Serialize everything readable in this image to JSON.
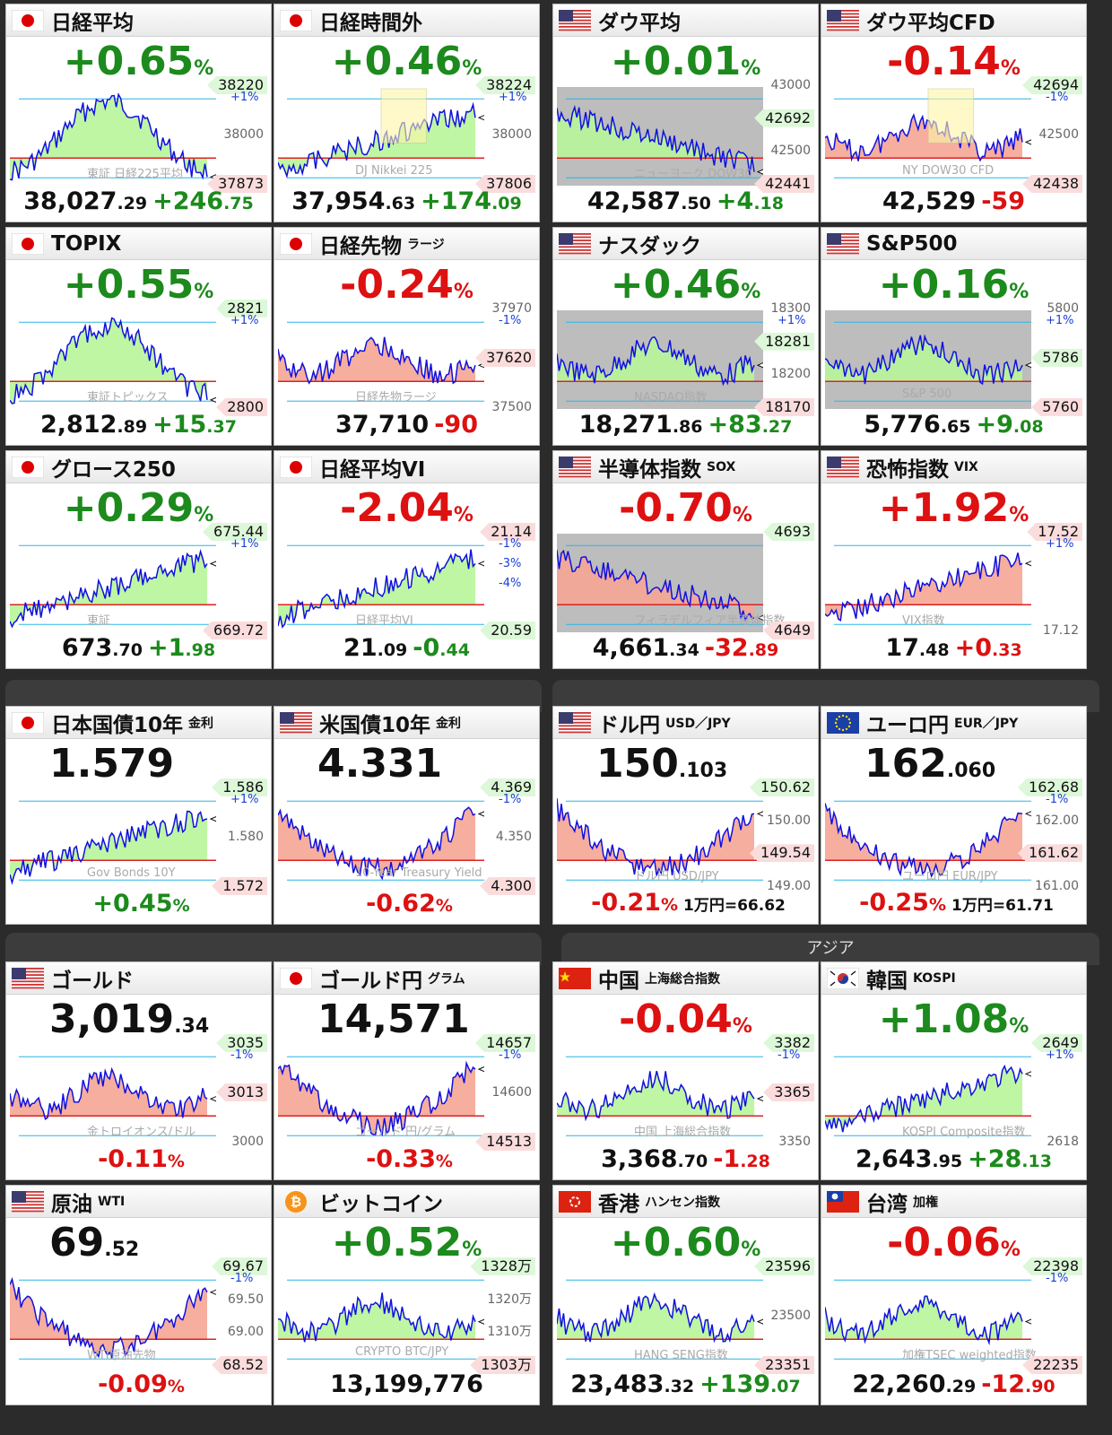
{
  "section": {
    "asia_label": "アジア"
  },
  "tiles": [
    {
      "id": "nikkei",
      "flag": "jp",
      "name": "日経平均",
      "sub": "",
      "big": "+0.65",
      "big_unit": "%",
      "dir": "up",
      "tags": [
        {
          "t": "38220",
          "c": "g"
        },
        {
          "t": "38000",
          "c": "plain"
        },
        {
          "t": "37873",
          "c": "r"
        }
      ],
      "pct": [
        "+1%"
      ],
      "wm": "東証 日経225平均",
      "foot": "38,027",
      "foot_dec": ".29",
      "chg": "+246",
      "chg_dec": ".75",
      "chg_dir": "up",
      "fill": "g",
      "box": false,
      "shade": false
    },
    {
      "id": "nikkei-night",
      "flag": "jp",
      "name": "日経時間外",
      "sub": "",
      "big": "+0.46",
      "big_unit": "%",
      "dir": "up",
      "tags": [
        {
          "t": "38224",
          "c": "g"
        },
        {
          "t": "38000",
          "c": "plain"
        },
        {
          "t": "37806",
          "c": "r"
        }
      ],
      "pct": [
        "+1%"
      ],
      "wm": "DJ Nikkei 225",
      "foot": "37,954",
      "foot_dec": ".63",
      "chg": "+174",
      "chg_dec": ".09",
      "chg_dir": "up",
      "fill": "g",
      "box": true,
      "shade": false
    },
    {
      "id": "dow",
      "flag": "us",
      "name": "ダウ平均",
      "sub": "",
      "big": "+0.01",
      "big_unit": "%",
      "dir": "up",
      "tags": [
        {
          "t": "43000",
          "c": "plain"
        },
        {
          "t": "42692",
          "c": "g"
        },
        {
          "t": "42500",
          "c": "plain"
        },
        {
          "t": "42441",
          "c": "r"
        }
      ],
      "pct": [],
      "wm": "ニューヨーク DOW30",
      "foot": "42,587",
      "foot_dec": ".50",
      "chg": "+4",
      "chg_dec": ".18",
      "chg_dir": "up",
      "fill": "g",
      "box": false,
      "shade": true
    },
    {
      "id": "dow-cfd",
      "flag": "us",
      "name": "ダウ平均CFD",
      "sub": "",
      "big": "-0.14",
      "big_unit": "%",
      "dir": "dn",
      "tags": [
        {
          "t": "42694",
          "c": "g"
        },
        {
          "t": "42500",
          "c": "plain"
        },
        {
          "t": "42438",
          "c": "r"
        }
      ],
      "pct": [
        "-1%"
      ],
      "wm": "NY DOW30 CFD",
      "foot": "42,529",
      "foot_dec": "",
      "chg": "-59",
      "chg_dec": "",
      "chg_dir": "dn",
      "fill": "r",
      "box": true,
      "shade": false
    },
    {
      "id": "topix",
      "flag": "jp",
      "name": "TOPIX",
      "sub": "",
      "big": "+0.55",
      "big_unit": "%",
      "dir": "up",
      "tags": [
        {
          "t": "2821",
          "c": "g"
        },
        {
          "t": "2800",
          "c": "r"
        }
      ],
      "pct": [
        "+1%"
      ],
      "wm": "東証トピックス",
      "foot": "2,812",
      "foot_dec": ".89",
      "chg": "+15",
      "chg_dec": ".37",
      "chg_dir": "up",
      "fill": "g",
      "box": false,
      "shade": false
    },
    {
      "id": "nikkei-futures",
      "flag": "jp",
      "name": "日経先物",
      "sub": "ラージ",
      "big": "-0.24",
      "big_unit": "%",
      "dir": "dn",
      "tags": [
        {
          "t": "37970",
          "c": "plain"
        },
        {
          "t": "37620",
          "c": "r"
        },
        {
          "t": "37500",
          "c": "plain"
        }
      ],
      "pct": [
        "-1%"
      ],
      "wm": "日経先物ラージ",
      "foot": "37,710",
      "foot_dec": "",
      "chg": "-90",
      "chg_dec": "",
      "chg_dir": "dn",
      "fill": "r",
      "box": false,
      "shade": false
    },
    {
      "id": "nasdaq",
      "flag": "us",
      "name": "ナスダック",
      "sub": "",
      "big": "+0.46",
      "big_unit": "%",
      "dir": "up",
      "tags": [
        {
          "t": "18300",
          "c": "plain"
        },
        {
          "t": "18281",
          "c": "g"
        },
        {
          "t": "18200",
          "c": "plain"
        },
        {
          "t": "18170",
          "c": "r"
        }
      ],
      "pct": [
        "+1%"
      ],
      "wm": "NASDAQ指数",
      "foot": "18,271",
      "foot_dec": ".86",
      "chg": "+83",
      "chg_dec": ".27",
      "chg_dir": "up",
      "fill": "g",
      "box": false,
      "shade": true
    },
    {
      "id": "sp500",
      "flag": "us",
      "name": "S&P500",
      "sub": "",
      "big": "+0.16",
      "big_unit": "%",
      "dir": "up",
      "tags": [
        {
          "t": "5800",
          "c": "plain"
        },
        {
          "t": "5786",
          "c": "g"
        },
        {
          "t": "5760",
          "c": "r"
        }
      ],
      "pct": [
        "+1%"
      ],
      "wm": "S&P 500",
      "foot": "5,776",
      "foot_dec": ".65",
      "chg": "+9",
      "chg_dec": ".08",
      "chg_dir": "up",
      "fill": "g",
      "box": false,
      "shade": true
    },
    {
      "id": "growth250",
      "flag": "jp",
      "name": "グロース250",
      "sub": "",
      "big": "+0.29",
      "big_unit": "%",
      "dir": "up",
      "tags": [
        {
          "t": "675.44",
          "c": "g"
        },
        {
          "t": "669.72",
          "c": "r"
        }
      ],
      "pct": [
        "+1%"
      ],
      "wm": "東証",
      "foot": "673",
      "foot_dec": ".70",
      "chg": "+1",
      "chg_dec": ".98",
      "chg_dir": "up",
      "fill": "mix",
      "box": false,
      "shade": false
    },
    {
      "id": "nikkei-vi",
      "flag": "jp",
      "name": "日経平均VI",
      "sub": "",
      "big": "-2.04",
      "big_unit": "%",
      "dir": "dn",
      "tags": [
        {
          "t": "21.14",
          "c": "r"
        },
        {
          "t": "20.59",
          "c": "g"
        }
      ],
      "pct": [
        "-1%",
        "-3%",
        "-4%"
      ],
      "wm": "日経平均VI",
      "foot": "21",
      "foot_dec": ".09",
      "chg": "-0",
      "chg_dec": ".44",
      "chg_dir": "up",
      "fill": "vi",
      "box": false,
      "shade": false
    },
    {
      "id": "sox",
      "flag": "us",
      "name": "半導体指数",
      "sub": "SOX",
      "big": "-0.70",
      "big_unit": "%",
      "dir": "dn",
      "tags": [
        {
          "t": "4693",
          "c": "g"
        },
        {
          "t": "4649",
          "c": "r"
        }
      ],
      "pct": [],
      "wm": "フィラデルフィア半導体指数",
      "foot": "4,661",
      "foot_dec": ".34",
      "chg": "-32",
      "chg_dec": ".89",
      "chg_dir": "dn",
      "fill": "r",
      "box": false,
      "shade": true
    },
    {
      "id": "vix",
      "flag": "us",
      "name": "恐怖指数",
      "sub": "VIX",
      "big": "+1.92",
      "big_unit": "%",
      "dir": "dn",
      "tags": [
        {
          "t": "17.52",
          "c": "r"
        },
        {
          "t": "17.12",
          "c": "plain"
        }
      ],
      "pct": [
        "+1%"
      ],
      "wm": "VIX指数",
      "foot": "17",
      "foot_dec": ".48",
      "chg": "+0",
      "chg_dec": ".33",
      "chg_dir": "dn",
      "fill": "r",
      "box": false,
      "shade": false
    },
    {
      "id": "jgb10",
      "flag": "jp",
      "name": "日本国債10年",
      "sub": "金利",
      "big": "1.579",
      "big_unit": "",
      "dir": "plain",
      "tags": [
        {
          "t": "1.586",
          "c": "g"
        },
        {
          "t": "1.580",
          "c": "plain"
        },
        {
          "t": "1.572",
          "c": "r"
        }
      ],
      "pct": [
        "+1%"
      ],
      "wm": "Gov Bonds 10Y",
      "foot": "",
      "foot_dec": "",
      "chg": "+0.45",
      "chg_dec": "%",
      "chg_dir": "up",
      "fill": "g",
      "box": false,
      "shade": false
    },
    {
      "id": "ust10",
      "flag": "us",
      "name": "米国債10年",
      "sub": "金利",
      "big": "4.331",
      "big_unit": "",
      "dir": "plain",
      "tags": [
        {
          "t": "4.369",
          "c": "g"
        },
        {
          "t": "4.350",
          "c": "plain"
        },
        {
          "t": "4.300",
          "c": "r"
        }
      ],
      "pct": [
        "-1%"
      ],
      "wm": "10-Year Treasury Yield",
      "foot": "",
      "foot_dec": "",
      "chg": "-0.62",
      "chg_dec": "%",
      "chg_dir": "dn",
      "fill": "r",
      "box": false,
      "shade": false
    },
    {
      "id": "usdjpy",
      "flag": "us",
      "name": "ドル円",
      "sub": "USD／JPY",
      "big": "150",
      "big_unit": ".103",
      "dir": "plain",
      "tags": [
        {
          "t": "150.62",
          "c": "g"
        },
        {
          "t": "150.00",
          "c": "plain"
        },
        {
          "t": "149.54",
          "c": "r"
        },
        {
          "t": "149.00",
          "c": "plain"
        }
      ],
      "pct": [],
      "wm": "ドル円 USD/JPY",
      "foot": "",
      "foot_dec": "",
      "chg": "-0.21",
      "chg_dec": "%",
      "chg_dir": "dn",
      "conv": "1万円=66.62",
      "fill": "r",
      "box": false,
      "shade": false
    },
    {
      "id": "eurjpy",
      "flag": "eu",
      "name": "ユーロ円",
      "sub": "EUR／JPY",
      "big": "162",
      "big_unit": ".060",
      "dir": "plain",
      "tags": [
        {
          "t": "162.68",
          "c": "g"
        },
        {
          "t": "162.00",
          "c": "plain"
        },
        {
          "t": "161.62",
          "c": "r"
        },
        {
          "t": "161.00",
          "c": "plain"
        }
      ],
      "pct": [
        "-1%"
      ],
      "wm": "ユーロ円 EUR/JPY",
      "foot": "",
      "foot_dec": "",
      "chg": "-0.25",
      "chg_dec": "%",
      "chg_dir": "dn",
      "conv": "1万円=61.71",
      "fill": "r",
      "box": false,
      "shade": false
    },
    {
      "id": "gold",
      "flag": "us",
      "name": "ゴールド",
      "sub": "",
      "big": "3,019",
      "big_unit": ".34",
      "dir": "plain",
      "tags": [
        {
          "t": "3035",
          "c": "g"
        },
        {
          "t": "3013",
          "c": "r"
        },
        {
          "t": "3000",
          "c": "plain"
        }
      ],
      "pct": [
        "-1%"
      ],
      "wm": "金トロイオンス/ドル",
      "foot": "",
      "foot_dec": "",
      "chg": "-0.11",
      "chg_dec": "%",
      "chg_dir": "dn",
      "fill": "r",
      "box": false,
      "shade": false
    },
    {
      "id": "gold-jpy",
      "flag": "jp",
      "name": "ゴールド円",
      "sub": "グラム",
      "big": "14,571",
      "big_unit": "",
      "dir": "plain",
      "tags": [
        {
          "t": "14657",
          "c": "g"
        },
        {
          "t": "14600",
          "c": "plain"
        },
        {
          "t": "14513",
          "c": "r"
        }
      ],
      "pct": [
        "-1%"
      ],
      "wm": "ゴールド 円/グラム",
      "foot": "",
      "foot_dec": "",
      "chg": "-0.33",
      "chg_dec": "%",
      "chg_dir": "dn",
      "fill": "r",
      "box": false,
      "shade": false
    },
    {
      "id": "china",
      "flag": "cn",
      "name": "中国",
      "sub": "上海総合指数",
      "big": "-0.04",
      "big_unit": "%",
      "dir": "dn",
      "tags": [
        {
          "t": "3382",
          "c": "g"
        },
        {
          "t": "3365",
          "c": "r"
        },
        {
          "t": "3350",
          "c": "plain"
        }
      ],
      "pct": [
        "-1%"
      ],
      "wm": "中国 上海総合指数",
      "foot": "3,368",
      "foot_dec": ".70",
      "chg": "-1",
      "chg_dec": ".28",
      "chg_dir": "dn",
      "fill": "g",
      "box": false,
      "shade": false
    },
    {
      "id": "korea",
      "flag": "kr",
      "name": "韓国",
      "sub": "KOSPI",
      "big": "+1.08",
      "big_unit": "%",
      "dir": "up",
      "tags": [
        {
          "t": "2649",
          "c": "g"
        },
        {
          "t": "2618",
          "c": "plain"
        }
      ],
      "pct": [
        "+1%"
      ],
      "wm": "KOSPI Composite指数",
      "foot": "2,643",
      "foot_dec": ".95",
      "chg": "+28",
      "chg_dec": ".13",
      "chg_dir": "up",
      "fill": "g",
      "box": false,
      "shade": false
    },
    {
      "id": "wti",
      "flag": "us",
      "name": "原油",
      "sub": "WTI",
      "big": "69",
      "big_unit": ".52",
      "dir": "plain",
      "tags": [
        {
          "t": "69.67",
          "c": "g"
        },
        {
          "t": "69.50",
          "c": "plain"
        },
        {
          "t": "69.00",
          "c": "plain"
        },
        {
          "t": "68.52",
          "c": "r"
        }
      ],
      "pct": [
        "-1%"
      ],
      "wm": "WTI原油先物",
      "foot": "",
      "foot_dec": "",
      "chg": "-0.09",
      "chg_dec": "%",
      "chg_dir": "dn",
      "fill": "r",
      "box": false,
      "shade": false
    },
    {
      "id": "bitcoin",
      "flag": "btc",
      "name": "ビットコイン",
      "sub": "",
      "big": "+0.52",
      "big_unit": "%",
      "dir": "up",
      "tags": [
        {
          "t": "1328万",
          "c": "g"
        },
        {
          "t": "1320万",
          "c": "plain"
        },
        {
          "t": "1310万",
          "c": "plain"
        },
        {
          "t": "1303万",
          "c": "r"
        }
      ],
      "pct": [],
      "wm": "CRYPTO BTC/JPY",
      "foot": "13,199,776",
      "foot_dec": "",
      "chg": "",
      "chg_dec": "",
      "chg_dir": "up",
      "fill": "g",
      "box": false,
      "shade": false
    },
    {
      "id": "hongkong",
      "flag": "hk",
      "name": "香港",
      "sub": "ハンセン指数",
      "big": "+0.60",
      "big_unit": "%",
      "dir": "up",
      "tags": [
        {
          "t": "23596",
          "c": "g"
        },
        {
          "t": "23500",
          "c": "plain"
        },
        {
          "t": "23351",
          "c": "r"
        }
      ],
      "pct": [],
      "wm": "HANG SENG指数",
      "foot": "23,483",
      "foot_dec": ".32",
      "chg": "+139",
      "chg_dec": ".07",
      "chg_dir": "up",
      "fill": "g",
      "box": false,
      "shade": false
    },
    {
      "id": "taiwan",
      "flag": "tw",
      "name": "台湾",
      "sub": "加権",
      "big": "-0.06",
      "big_unit": "%",
      "dir": "dn",
      "tags": [
        {
          "t": "22398",
          "c": "g"
        },
        {
          "t": "22235",
          "c": "r"
        }
      ],
      "pct": [
        "-1%"
      ],
      "wm": "加権TSEC weighted指数",
      "foot": "22,260",
      "foot_dec": ".29",
      "chg": "-12",
      "chg_dec": ".90",
      "chg_dir": "dn",
      "fill": "g",
      "box": false,
      "shade": false
    }
  ]
}
